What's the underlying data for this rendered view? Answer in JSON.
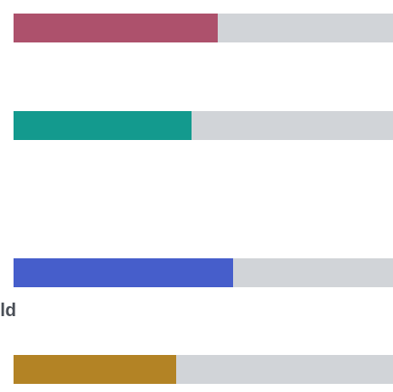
{
  "track_color": "#d1d4d8",
  "bars": [
    {
      "fraction": 0.538,
      "color": "#ad516c"
    },
    {
      "fraction": 0.469,
      "color": "#139a8e"
    },
    {
      "fraction": 0.579,
      "color": "#465ecb"
    },
    {
      "fraction": 0.429,
      "color": "#b38325"
    }
  ],
  "cut_label": "old"
}
